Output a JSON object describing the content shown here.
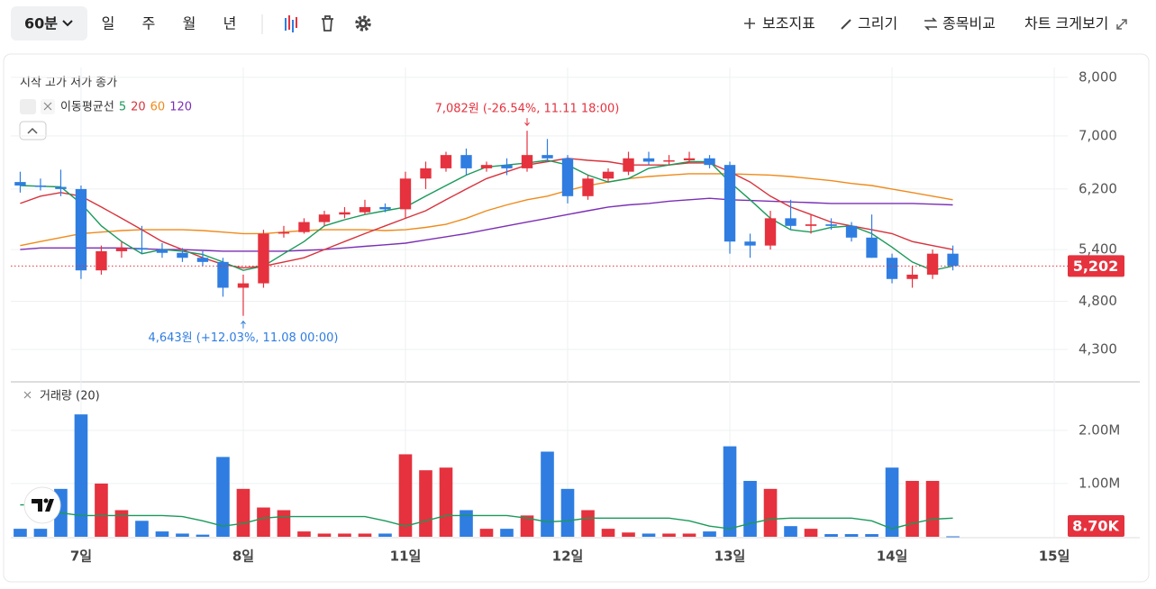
{
  "toolbar": {
    "interval": "60분",
    "periods": [
      "일",
      "주",
      "월",
      "년"
    ],
    "actions": [
      "보조지표",
      "그리기",
      "종목비교",
      "차트 크게보기"
    ]
  },
  "chart_data": {
    "type": "candlestick",
    "ohlc_legend": "시작 고가 저가 종가",
    "ma_legend": "이동평균선",
    "up_color": "#e5323e",
    "down_color": "#2f7de1",
    "x": [
      -0.375,
      -0.25,
      -0.125,
      0,
      0.125,
      0.25,
      0.375,
      0.5,
      0.625,
      0.75,
      0.875,
      1,
      1.125,
      1.25,
      1.375,
      1.5,
      1.625,
      1.75,
      1.875,
      2,
      2.125,
      2.25,
      2.375,
      2.5,
      2.625,
      2.75,
      2.875,
      3,
      3.125,
      3.25,
      3.375,
      3.5,
      3.625,
      3.75,
      3.875,
      4,
      4.125,
      4.25,
      4.375,
      4.5,
      4.625,
      4.75,
      4.875,
      5,
      5.125,
      5.25,
      5.375
    ],
    "open": [
      6300,
      6250,
      6230,
      6200,
      5150,
      5380,
      5420,
      5400,
      5360,
      5300,
      5250,
      4950,
      5000,
      5600,
      5620,
      5750,
      5850,
      5880,
      5950,
      5920,
      6350,
      6500,
      6700,
      6500,
      6550,
      6500,
      6700,
      6650,
      6100,
      6350,
      6450,
      6650,
      6600,
      6620,
      6650,
      6550,
      5500,
      5450,
      5800,
      5700,
      5720,
      5700,
      5550,
      5300,
      5050,
      5100,
      5350
    ],
    "high": [
      6450,
      6350,
      6480,
      6250,
      5450,
      5500,
      5700,
      5480,
      5420,
      5380,
      5300,
      5100,
      5650,
      5700,
      5800,
      5900,
      5950,
      6050,
      6000,
      6450,
      6600,
      6750,
      6800,
      6600,
      6650,
      7082,
      6950,
      6700,
      6400,
      6500,
      6750,
      6750,
      6700,
      6750,
      6700,
      6600,
      5600,
      5900,
      6050,
      5850,
      5800,
      5750,
      5850,
      5350,
      5200,
      5400,
      5450
    ],
    "low": [
      6150,
      6180,
      6100,
      5050,
      5100,
      5300,
      5350,
      5300,
      5250,
      5200,
      4850,
      4643,
      4950,
      5550,
      5600,
      5700,
      5800,
      5850,
      5880,
      5800,
      6200,
      6450,
      6400,
      6450,
      6400,
      6450,
      6600,
      6000,
      6050,
      6300,
      6400,
      6550,
      6550,
      6580,
      6500,
      5350,
      5300,
      5400,
      5650,
      5600,
      5650,
      5500,
      5300,
      5000,
      4950,
      5050,
      5150
    ],
    "close": [
      6250,
      6230,
      6200,
      5150,
      5380,
      5420,
      5400,
      5360,
      5300,
      5250,
      4950,
      5000,
      5600,
      5620,
      5750,
      5850,
      5880,
      5950,
      5920,
      6350,
      6500,
      6700,
      6500,
      6550,
      6500,
      6700,
      6650,
      6100,
      6350,
      6450,
      6650,
      6600,
      6620,
      6650,
      6550,
      5500,
      5450,
      5800,
      5700,
      5720,
      5700,
      5550,
      5300,
      5050,
      5100,
      5350,
      5202
    ],
    "ma_series": [
      {
        "name": "5",
        "color": "#1a9a5a",
        "values": [
          6250,
          6240,
          6230,
          6000,
          5700,
          5500,
          5350,
          5400,
          5380,
          5340,
          5250,
          5150,
          5200,
          5350,
          5500,
          5700,
          5780,
          5850,
          5900,
          5950,
          6100,
          6250,
          6400,
          6520,
          6550,
          6580,
          6620,
          6550,
          6400,
          6300,
          6350,
          6500,
          6550,
          6600,
          6600,
          6300,
          6050,
          5800,
          5650,
          5620,
          5680,
          5700,
          5600,
          5430,
          5250,
          5150,
          5200
        ]
      },
      {
        "name": "20",
        "color": "#d8323c",
        "values": [
          6000,
          6100,
          6150,
          6100,
          5950,
          5800,
          5650,
          5500,
          5400,
          5300,
          5220,
          5180,
          5200,
          5250,
          5300,
          5400,
          5500,
          5600,
          5700,
          5800,
          5900,
          6050,
          6200,
          6350,
          6450,
          6550,
          6600,
          6650,
          6620,
          6600,
          6550,
          6550,
          6550,
          6580,
          6580,
          6450,
          6300,
          6100,
          5950,
          5850,
          5750,
          5700,
          5650,
          5600,
          5500,
          5450,
          5400
        ]
      },
      {
        "name": "60",
        "color": "#ef8a1a",
        "values": [
          5450,
          5500,
          5550,
          5600,
          5620,
          5640,
          5650,
          5650,
          5650,
          5640,
          5620,
          5600,
          5600,
          5620,
          5640,
          5650,
          5650,
          5650,
          5640,
          5650,
          5680,
          5720,
          5800,
          5900,
          5980,
          6050,
          6100,
          6180,
          6250,
          6300,
          6350,
          6380,
          6400,
          6420,
          6420,
          6420,
          6410,
          6400,
          6380,
          6350,
          6320,
          6280,
          6250,
          6200,
          6150,
          6100,
          6050
        ]
      },
      {
        "name": "120",
        "color": "#7b2fb5",
        "values": [
          5400,
          5420,
          5420,
          5420,
          5420,
          5420,
          5410,
          5400,
          5400,
          5390,
          5380,
          5380,
          5380,
          5380,
          5390,
          5400,
          5420,
          5440,
          5460,
          5480,
          5520,
          5560,
          5600,
          5650,
          5700,
          5750,
          5800,
          5850,
          5900,
          5950,
          5980,
          6000,
          6030,
          6050,
          6070,
          6050,
          6040,
          6030,
          6020,
          6010,
          6000,
          6000,
          6000,
          6000,
          6000,
          5990,
          5980
        ]
      }
    ],
    "annotations": [
      {
        "text": "7,082원 (-26.54%, 11.11 18:00)",
        "x": 2.75,
        "y": 7082,
        "color": "#e5323e",
        "position": "above"
      },
      {
        "text": "4,643원 (+12.03%, 11.08 00:00)",
        "x": 1,
        "y": 4643,
        "color": "#2f7de1",
        "position": "below"
      }
    ],
    "last_price": {
      "value": 5202,
      "label": "5,202"
    },
    "xlim": [
      -0.433,
      6.083
    ],
    "xticks": [
      {
        "value": 0,
        "label": "7일"
      },
      {
        "value": 1,
        "label": "8일"
      },
      {
        "value": 2,
        "label": "11일"
      },
      {
        "value": 3,
        "label": "12일"
      },
      {
        "value": 4,
        "label": "13일"
      },
      {
        "value": 5,
        "label": "14일"
      },
      {
        "value": 6,
        "label": "15일"
      }
    ],
    "ylim": [
      4010,
      8180
    ],
    "log_scale": true,
    "yticks": [
      {
        "value": 8000,
        "label": "8,000"
      },
      {
        "value": 7000,
        "label": "7,000"
      },
      {
        "value": 6200,
        "label": "6,200"
      },
      {
        "value": 5400,
        "label": "5,400"
      },
      {
        "value": 4800,
        "label": "4,800"
      },
      {
        "value": 4300,
        "label": "4,300"
      }
    ],
    "grid": true,
    "volume": {
      "name": "거래량 (20)",
      "values": [
        150000,
        150000,
        900000,
        2300000,
        1000000,
        500000,
        300000,
        100000,
        60000,
        40000,
        1500000,
        900000,
        550000,
        500000,
        100000,
        60000,
        60000,
        60000,
        60000,
        1550000,
        1250000,
        1300000,
        500000,
        150000,
        150000,
        400000,
        1600000,
        900000,
        500000,
        150000,
        80000,
        60000,
        60000,
        60000,
        100000,
        1700000,
        1050000,
        900000,
        200000,
        150000,
        50000,
        50000,
        50000,
        1300000,
        1050000,
        1050000,
        8700
      ],
      "ma_values": [
        600000,
        600000,
        450000,
        400000,
        400000,
        400000,
        400000,
        400000,
        380000,
        300000,
        200000,
        250000,
        350000,
        380000,
        380000,
        380000,
        380000,
        380000,
        300000,
        200000,
        300000,
        400000,
        400000,
        400000,
        400000,
        350000,
        280000,
        300000,
        350000,
        350000,
        350000,
        350000,
        350000,
        300000,
        200000,
        150000,
        250000,
        330000,
        350000,
        350000,
        350000,
        350000,
        300000,
        150000,
        250000,
        330000,
        350000
      ],
      "ma_color": "#1a9a5a",
      "last": {
        "value": 8700,
        "label": "8.70K"
      },
      "vlim": [
        0,
        2810000
      ],
      "vticks": [
        {
          "value": 2000000,
          "label": "2.00M"
        },
        {
          "value": 1000000,
          "label": "1.00M"
        }
      ]
    }
  }
}
